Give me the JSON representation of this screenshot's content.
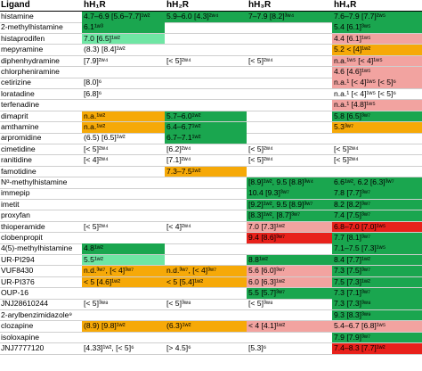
{
  "headers": {
    "ligand": "Ligand",
    "h1": "hH₁R",
    "h2": "hH₂R",
    "h3": "hH₃R",
    "h4": "hH₄R"
  },
  "legend_colors": {
    "dark_green": "#1aa64f",
    "light_green": "#6fe6a4",
    "orange": "#f6a908",
    "pink": "#f2a3a0",
    "red": "#e8211b"
  },
  "rows": [
    {
      "ligand": "histamine",
      "h1": "4.7–6.9 [5.6–7.7]¹ʷ²",
      "h2": "5.9–6.0 [4.3]²ʷ⁴",
      "h3": "7–7.9 [8.2]³ʷ⁴",
      "h4": "7.6–7.9 [7.7]²ʷ⁵"
    },
    {
      "ligand": "2-methylhistamine",
      "h1": "6.1¹ʷ³",
      "h2": "",
      "h3": "",
      "h4": "5.4 [6.1]³ʷ⁵"
    },
    {
      "ligand": "histaprodifen",
      "h1": "7.0 [6.5]¹ʷ²",
      "h2": "",
      "h3": "",
      "h4": "4.4 [6.1]¹ʷ⁵"
    },
    {
      "ligand": "mepyramine",
      "h1": "(8.3) [8.4]¹ʷ²",
      "h2": "",
      "h3": "",
      "h4": "5.2 < [4]¹ʷ²"
    },
    {
      "ligand": "diphenhydramine",
      "h1": "[7.9]²ʷ⁴",
      "h2": "[< 5]²ʷ⁴",
      "h3": "[< 5]²ʷ⁴",
      "h4": "n.a.¹ʷ⁵ [< 4]¹ʷ⁵"
    },
    {
      "ligand": "chlorpheniramine",
      "h1": "",
      "h2": "",
      "h3": "",
      "h4": "4.6 [4.6]¹ʷ⁵"
    },
    {
      "ligand": "cetirizine",
      "h1": "[8.0]⁶",
      "h2": "",
      "h3": "",
      "h4": "n.a.¹ [< 4]¹ʷ⁵ [< 5]⁶"
    },
    {
      "ligand": "loratadine",
      "h1": "[6.8]⁶",
      "h2": "",
      "h3": "",
      "h4": "n.a.¹ [< 4]¹ʷ⁵ [< 5]⁶"
    },
    {
      "ligand": "terfenadine",
      "h1": "",
      "h2": "",
      "h3": "",
      "h4": "n.a.¹ [4.8]¹ʷ⁵"
    },
    {
      "ligand": "dimaprit",
      "h1": "n.a.¹ʷ²",
      "h2": "5.7–6.0¹ʷ²",
      "h3": "",
      "h4": "5.8 [6.5]³ʷ⁷"
    },
    {
      "ligand": "amthamine",
      "h1": "n.a.¹ʷ²",
      "h2": "6.4–6.7¹ʷ²",
      "h3": "",
      "h4": "5.3³ʷ⁷"
    },
    {
      "ligand": "arpromidine",
      "h1": "(6.5) [6.5]¹ʷ²",
      "h2": "6.7–7.1¹ʷ²",
      "h3": "",
      "h4": ""
    },
    {
      "ligand": "cimetidine",
      "h1": "[< 5]²ʷ⁴",
      "h2": "[6.2]²ʷ⁴",
      "h3": "[< 5]²ʷ⁴",
      "h4": "[< 5]²ʷ⁴"
    },
    {
      "ligand": "ranitidine",
      "h1": "[< 4]²ʷ⁴",
      "h2": "[7.1]²ʷ⁴",
      "h3": "[< 5]²ʷ⁴",
      "h4": "[< 5]²ʷ⁴"
    },
    {
      "ligand": "famotidine",
      "h1": "",
      "h2": "7.3–7.5¹ʷ²",
      "h3": "",
      "h4": ""
    },
    {
      "ligand": "Nᵅ-methylhistamine",
      "h1": "",
      "h2": "",
      "h3": "[8.9]¹ʷ², 9.5 [8.8]³ʷ⁴",
      "h4": "6.6¹ʷ², 6.2 [6.3]³ʷ⁷"
    },
    {
      "ligand": "immepip",
      "h1": "",
      "h2": "",
      "h3": "10.4 [9.3]³ʷ⁷",
      "h4": "7.8 [7.7]³ʷ⁷"
    },
    {
      "ligand": "imetit",
      "h1": "",
      "h2": "",
      "h3": "[9.2]¹ʷ², 9.5 [8.9]³ʷ⁷",
      "h4": "8.2 [8.2]³ʷ⁷"
    },
    {
      "ligand": "proxyfan",
      "h1": "",
      "h2": "",
      "h3": "[8.3]¹ʷ², [8.7]³ʷ⁷",
      "h4": "7.4 [7.5]³ʷ⁷"
    },
    {
      "ligand": "thioperamide",
      "h1": "[< 5]²ʷ⁴",
      "h2": "[< 4]²ʷ⁴",
      "h3": "7.0 [7.3]¹ʷ²",
      "h4": "6.8–7.0 [7.0]¹ʷ⁵"
    },
    {
      "ligand": "clobenpropit",
      "h1": "",
      "h2": "",
      "h3": "9.4 [8.6]³ʷ⁷",
      "h4": "7.7 [8.1]³ʷ⁷"
    },
    {
      "ligand": "4(5)-methylhistamine",
      "h1": "4.8¹ʷ²",
      "h2": "",
      "h3": "",
      "h4": "7.1–7.5 [7.3]¹ʷ⁵"
    },
    {
      "ligand": "UR-PI294",
      "h1": "5.5¹ʷ²",
      "h2": "",
      "h3": "8.8¹ʷ²",
      "h4": "8.4 [7.7]¹ʷ²"
    },
    {
      "ligand": "VUF8430",
      "h1": "n.d.³ʷ⁷, [< 4]³ʷ⁷",
      "h2": "n.d.³ʷ⁷, [< 4]³ʷ⁷",
      "h3": "5.6 [6.0]³ʷ⁷",
      "h4": "7.3 [7.5]³ʷ⁷"
    },
    {
      "ligand": "UR-PI376",
      "h1": "< 5 [4.6]¹ʷ²",
      "h2": "< 5 [5.4]¹ʷ²",
      "h3": "6.0 [6.3]¹ʷ²",
      "h4": "7.5 [7.3]¹ʷ²"
    },
    {
      "ligand": "OUP-16",
      "h1": "",
      "h2": "",
      "h3": "5.5 [5.7]³ʷ⁷",
      "h4": "7.3 [7.1]³ʷ⁷"
    },
    {
      "ligand": "JNJ28610244",
      "h1": "[< 5]³ʷ⁸",
      "h2": "[< 5]³ʷ⁸",
      "h3": "[< 5]³ʷ⁸",
      "h4": "7.3 [7.3]³ʷ⁸"
    },
    {
      "ligand": "2-arylbenzimidazole⁹",
      "h1": "",
      "h2": "",
      "h3": "",
      "h4": "9.3 [8.3]³ʷ⁹"
    },
    {
      "ligand": "clozapine",
      "h1": "(8.9) [9.8]¹ʷ²",
      "h2": "(6.3)¹ʷ²",
      "h3": "< 4 [4.1]¹ʷ²",
      "h4": "5.4–6.7 [6.8]¹ʷ⁵"
    },
    {
      "ligand": "isoloxapine",
      "h1": "",
      "h2": "",
      "h3": "",
      "h4": "7.9 [7.9]³ʷ⁷"
    },
    {
      "ligand": "JNJ7777120",
      "h1": "[4.33]¹ʷ², [< 5]⁶",
      "h2": "[> 4.5]⁶",
      "h3": "[5.3]⁶",
      "h4": "7.4–8.3 [7.7]¹ʷ²"
    }
  ]
}
